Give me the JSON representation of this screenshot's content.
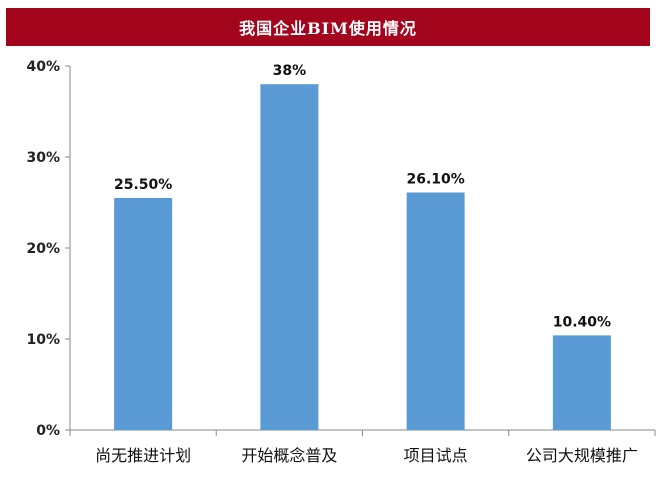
{
  "chart_data": {
    "type": "bar",
    "title": "我国企业BIM使用情况",
    "categories": [
      "尚无推进计划",
      "开始概念普及",
      "项目试点",
      "公司大规模推广"
    ],
    "values": [
      25.5,
      38,
      26.1,
      10.4
    ],
    "data_labels": [
      "25.50%",
      "38%",
      "26.10%",
      "10.40%"
    ],
    "ylim": [
      0,
      40
    ],
    "yticks": [
      0,
      10,
      20,
      30,
      40
    ],
    "ytick_labels": [
      "0%",
      "10%",
      "20%",
      "30%",
      "40%"
    ],
    "xlabel": "",
    "ylabel": "",
    "grid": false,
    "legend": "none",
    "bar_color": "#5b9bd5",
    "title_bar_color": "#a3051c"
  }
}
